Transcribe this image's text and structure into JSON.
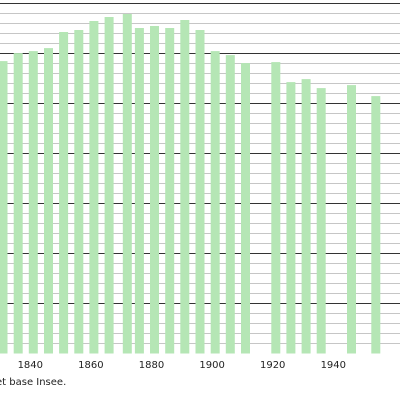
{
  "source_note": "et base Insee.",
  "colors": {
    "bar": "#b5e6b5",
    "major_grid": "#333333",
    "minor_grid": "#b3b3b3",
    "text": "#222222"
  },
  "chart_data": {
    "type": "bar",
    "title": "",
    "xlabel": "",
    "ylabel": "",
    "x_ticks": [
      1840,
      1860,
      1880,
      1900,
      1920,
      1940
    ],
    "x_tick_labels": [
      "1840",
      "1860",
      "1880",
      "1900",
      "1920",
      "1940"
    ],
    "xlim": [
      1830,
      1962
    ],
    "ylim": [
      0,
      350
    ],
    "grid": true,
    "legend": "none",
    "series": [
      {
        "x": [
          1831,
          1836,
          1841,
          1846,
          1851,
          1856,
          1861,
          1866,
          1872,
          1876,
          1881,
          1886,
          1891,
          1896,
          1901,
          1906,
          1911,
          1921,
          1926,
          1931,
          1936,
          1946,
          1954
        ],
        "values": [
          292,
          300,
          302,
          305,
          321,
          323,
          332,
          336,
          339,
          325,
          327,
          325,
          333,
          323,
          302,
          298,
          290,
          291,
          271,
          274,
          265,
          268,
          257
        ]
      }
    ]
  }
}
